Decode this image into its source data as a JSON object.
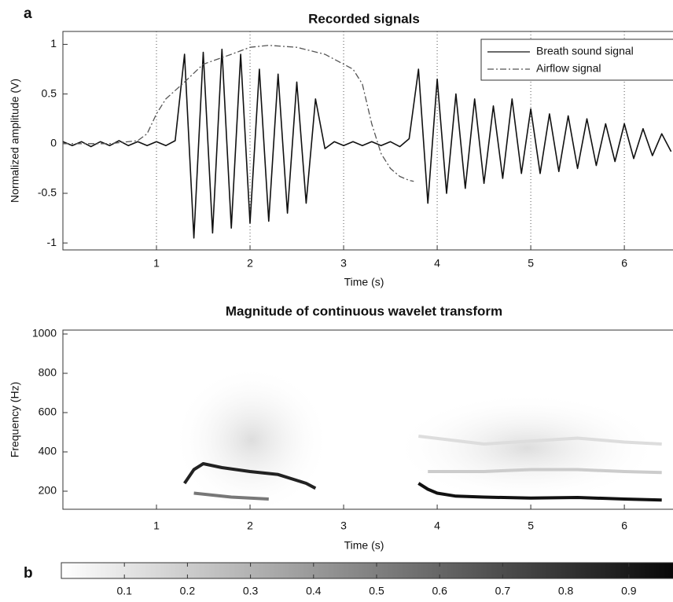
{
  "chart_data": [
    {
      "type": "line",
      "panel_label": "a",
      "title": "Recorded signals",
      "xlabel": "Time (s)",
      "ylabel": "Normalized amplitude (V)",
      "xlim": [
        0,
        6.52
      ],
      "xticks": [
        1,
        2,
        3,
        4,
        5,
        6
      ],
      "ylim": [
        -1.07,
        1.13
      ],
      "yticks": [
        -1,
        -0.5,
        0,
        0.5,
        1
      ],
      "grid": true,
      "legend": "upper right",
      "series": [
        {
          "name": "Breath sound signal",
          "color": "#111111",
          "linestyle": "-",
          "x": [
            0,
            0.1,
            0.2,
            0.3,
            0.4,
            0.5,
            0.6,
            0.7,
            0.8,
            0.9,
            1.0,
            1.1,
            1.2,
            1.3,
            1.4,
            1.5,
            1.6,
            1.7,
            1.8,
            1.9,
            2.0,
            2.1,
            2.2,
            2.3,
            2.4,
            2.5,
            2.6,
            2.7,
            2.8,
            2.9,
            3.0,
            3.1,
            3.2,
            3.3,
            3.4,
            3.5,
            3.6,
            3.7,
            3.8,
            3.9,
            4.0,
            4.1,
            4.2,
            4.3,
            4.4,
            4.5,
            4.6,
            4.7,
            4.8,
            4.9,
            5.0,
            5.1,
            5.2,
            5.3,
            5.4,
            5.5,
            5.6,
            5.7,
            5.8,
            5.9,
            6.0,
            6.1,
            6.2,
            6.3,
            6.4,
            6.5
          ],
          "values": [
            0.02,
            -0.02,
            0.02,
            -0.03,
            0.02,
            -0.02,
            0.03,
            -0.02,
            0.02,
            -0.02,
            0.02,
            -0.02,
            0.03,
            0.9,
            -0.95,
            0.92,
            -0.9,
            0.95,
            -0.85,
            0.9,
            -0.8,
            0.75,
            -0.78,
            0.7,
            -0.7,
            0.62,
            -0.6,
            0.45,
            -0.05,
            0.02,
            -0.02,
            0.02,
            -0.02,
            0.02,
            -0.02,
            0.02,
            -0.03,
            0.05,
            0.75,
            -0.6,
            0.65,
            -0.5,
            0.5,
            -0.45,
            0.45,
            -0.4,
            0.38,
            -0.35,
            0.45,
            -0.3,
            0.35,
            -0.3,
            0.3,
            -0.28,
            0.28,
            -0.25,
            0.25,
            -0.22,
            0.2,
            -0.18,
            0.2,
            -0.15,
            0.15,
            -0.12,
            0.1,
            -0.08
          ]
        },
        {
          "name": "Airflow signal",
          "color": "#555555",
          "linestyle": "-.",
          "x": [
            0,
            0.5,
            0.8,
            0.9,
            1.0,
            1.1,
            1.3,
            1.5,
            1.8,
            2.0,
            2.2,
            2.5,
            2.8,
            3.0,
            3.1,
            3.2,
            3.3,
            3.4,
            3.5,
            3.6,
            3.7,
            3.75
          ],
          "values": [
            0,
            0,
            0.03,
            0.1,
            0.3,
            0.45,
            0.62,
            0.8,
            0.9,
            0.97,
            0.99,
            0.97,
            0.9,
            0.8,
            0.75,
            0.6,
            0.2,
            -0.1,
            -0.25,
            -0.33,
            -0.37,
            -0.38
          ]
        }
      ]
    },
    {
      "type": "wavelet",
      "panel_label": "b",
      "title": "Magnitude of continuous wavelet transform",
      "xlabel": "Time (s)",
      "ylabel": "Frequency (Hz)",
      "xlim": [
        0,
        6.52
      ],
      "xticks": [
        1,
        2,
        3,
        4,
        5,
        6
      ],
      "ylim": [
        108,
        1020
      ],
      "yticks": [
        200,
        400,
        600,
        800,
        1000
      ],
      "series": [
        {
          "color": "#dddddd",
          "x": [
            3.8,
            4.5,
            5.0,
            5.5,
            6.0,
            6.4
          ],
          "values": [
            480,
            440,
            455,
            470,
            450,
            440
          ]
        },
        {
          "color": "#cccccc",
          "x": [
            3.9,
            4.5,
            5.0,
            5.5,
            6.0,
            6.4
          ],
          "values": [
            300,
            300,
            310,
            310,
            300,
            295
          ]
        },
        {
          "color": "#777777",
          "x": [
            1.4,
            1.6,
            1.8,
            2.0,
            2.2
          ],
          "values": [
            190,
            180,
            170,
            165,
            160
          ]
        },
        {
          "color": "#222222",
          "x": [
            1.3,
            1.4,
            1.5,
            1.7,
            2.0,
            2.3,
            2.6,
            2.7
          ],
          "values": [
            240,
            310,
            340,
            320,
            300,
            285,
            240,
            215
          ]
        },
        {
          "color": "#111111",
          "x": [
            3.8,
            3.9,
            4.0,
            4.2,
            4.5,
            5.0,
            5.5,
            6.0,
            6.4
          ],
          "values": [
            240,
            210,
            190,
            175,
            170,
            165,
            168,
            160,
            155
          ]
        }
      ],
      "colorbar": {
        "lim": [
          0,
          1
        ],
        "ticks": [
          0.1,
          0.2,
          0.3,
          0.4,
          0.5,
          0.6,
          0.7,
          0.8,
          0.9
        ]
      }
    }
  ]
}
